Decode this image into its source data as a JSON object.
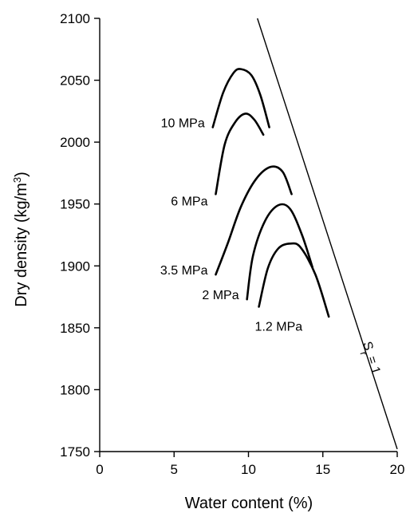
{
  "chart_data": {
    "type": "line",
    "xlabel": "Water content (%)",
    "ylabel": "Dry density (kg/m3)",
    "ylabel_parts": {
      "main": "Dry density (kg/m",
      "sup": "3",
      "end": ")"
    },
    "xlim": [
      0,
      20
    ],
    "ylim": [
      1750,
      2100
    ],
    "xticks": [
      0,
      5,
      10,
      15,
      20
    ],
    "yticks": [
      1750,
      1800,
      1850,
      1900,
      1950,
      2000,
      2050,
      2100
    ],
    "grid": false,
    "legend": "none",
    "series": [
      {
        "name": "10 MPa",
        "x": [
          7.6,
          8.3,
          9.0,
          9.5,
          10.2,
          10.8,
          11.4
        ],
        "y": [
          2012,
          2040,
          2056,
          2059,
          2054,
          2038,
          2012
        ]
      },
      {
        "name": "6 MPa",
        "x": [
          7.8,
          8.4,
          9.1,
          9.8,
          10.4,
          11.0
        ],
        "y": [
          1958,
          1998,
          2016,
          2023,
          2018,
          2006
        ]
      },
      {
        "name": "3.5 MPa",
        "x": [
          7.8,
          8.6,
          9.5,
          10.5,
          11.5,
          12.3,
          12.9
        ],
        "y": [
          1893,
          1918,
          1948,
          1970,
          1980,
          1976,
          1958
        ]
      },
      {
        "name": "2 MPa",
        "x": [
          9.9,
          10.3,
          11.1,
          12.0,
          12.8,
          13.6,
          14.3
        ],
        "y": [
          1873,
          1908,
          1936,
          1949,
          1946,
          1925,
          1899
        ]
      },
      {
        "name": "1.2 MPa",
        "x": [
          10.7,
          11.3,
          12.0,
          12.8,
          13.5,
          14.5,
          15.4
        ],
        "y": [
          1867,
          1898,
          1914,
          1918,
          1915,
          1893,
          1859
        ]
      },
      {
        "name": "Sr = 1",
        "x": [
          10.6,
          20.0
        ],
        "y": [
          2100,
          1752
        ]
      }
    ],
    "annotations": {
      "sat_label_main": "S",
      "sat_label_sub": "r",
      "sat_label_rest": " = 1"
    }
  }
}
